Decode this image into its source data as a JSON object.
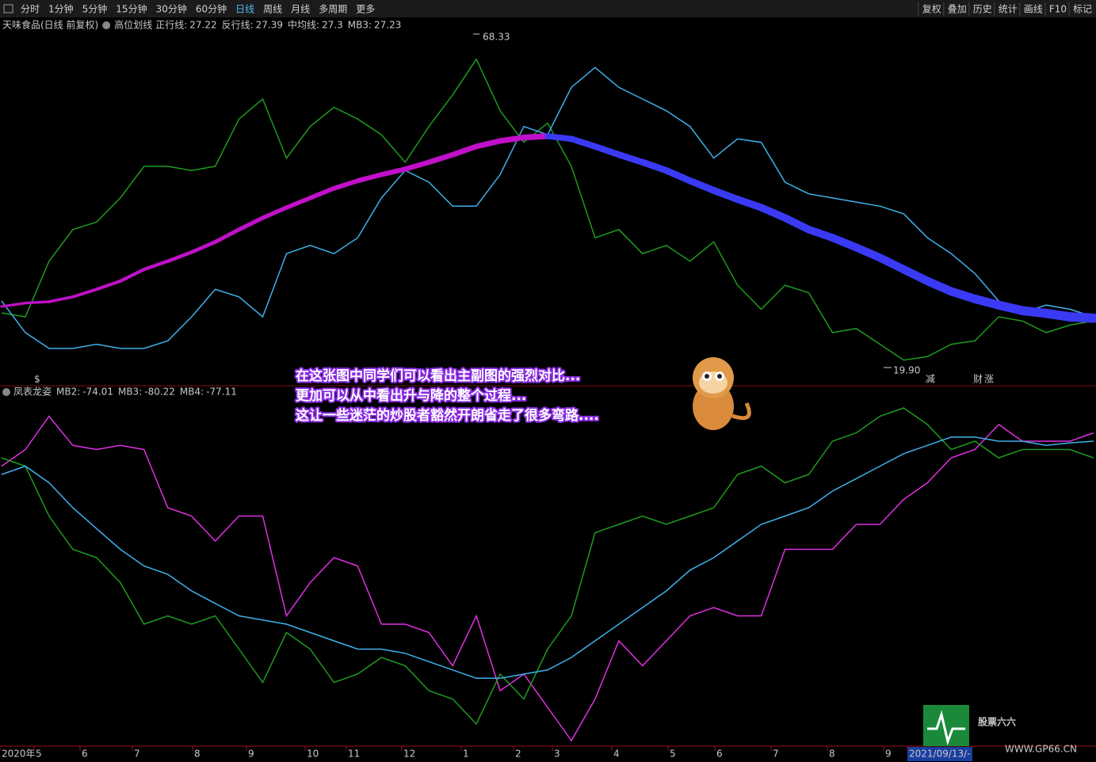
{
  "toolbar": {
    "periods": [
      "分时",
      "1分钟",
      "5分钟",
      "15分钟",
      "30分钟",
      "60分钟",
      "日线",
      "周线",
      "月线",
      "多周期",
      "更多"
    ],
    "tools": [
      "复权",
      "叠加",
      "历史",
      "统计",
      "画线",
      "F10",
      "标记"
    ]
  },
  "main": {
    "stock": "天味食品(日线 前复权)",
    "indicator": "高位划线",
    "legend": [
      {
        "name": "正行线:",
        "value": 27.22,
        "color": "#2ea02e"
      },
      {
        "name": "反行线:",
        "value": 27.39,
        "color": "#4fb8f0"
      },
      {
        "name": "中均线:",
        "value": 27.3,
        "color": "#e020e0"
      },
      {
        "name": "MB3:",
        "value": 27.23,
        "color": "#c8c8c8"
      }
    ],
    "high": 68.33,
    "low": {
      "value": 19.9,
      "label": "19.90"
    },
    "markers": [
      {
        "text": "$",
        "color": "#e02020"
      },
      {
        "text": "减",
        "color": "#20c020"
      },
      {
        "text": "财",
        "color": "#4fb8f0"
      },
      {
        "text": "涨",
        "color": "#e02020"
      }
    ],
    "series": [
      {
        "color": "#1f9a1f",
        "values": [
          27.97,
          27.4,
          35.5,
          40.1,
          41.2,
          44.7,
          49.3,
          49.3,
          48.7,
          49.3,
          56.2,
          59.1,
          50.5,
          55.1,
          57.9,
          56.2,
          53.9,
          49.9,
          55.1,
          59.7,
          64.9,
          57.4,
          52.8,
          55.6,
          49.3,
          38.9,
          40.1,
          36.6,
          37.8,
          35.5,
          38.3,
          32.0,
          28.5,
          32.0,
          30.9,
          25.1,
          25.7,
          23.4,
          21.1,
          21.6,
          23.4,
          23.9,
          27.4,
          26.8,
          25.1,
          26.2,
          26.8
        ]
      },
      {
        "color": "#3fb0ea",
        "values": [
          29.7,
          25.1,
          22.8,
          22.8,
          23.4,
          22.8,
          22.8,
          23.9,
          27.4,
          31.4,
          30.3,
          27.4,
          36.6,
          37.8,
          36.6,
          38.9,
          44.7,
          48.7,
          47.0,
          43.5,
          43.5,
          48.1,
          55.1,
          53.9,
          60.8,
          63.7,
          60.8,
          59.1,
          57.4,
          55.1,
          50.5,
          53.3,
          52.8,
          47.0,
          45.3,
          44.7,
          44.1,
          43.5,
          42.4,
          38.9,
          36.6,
          33.7,
          29.7,
          28.0,
          29.1,
          28.5,
          27.4
        ]
      },
      {
        "color": "#c010c8",
        "fall_color": "#3a3af5",
        "thick": true,
        "values": [
          28.9,
          29.4,
          29.6,
          30.3,
          31.4,
          32.6,
          34.3,
          35.5,
          36.8,
          38.3,
          40.1,
          41.8,
          43.3,
          44.7,
          46.1,
          47.2,
          48.1,
          48.9,
          49.9,
          51.0,
          52.2,
          53.0,
          53.5,
          53.7,
          53.3,
          52.2,
          51.0,
          49.9,
          48.7,
          47.2,
          45.8,
          44.5,
          43.3,
          41.8,
          40.1,
          38.9,
          37.5,
          36.0,
          34.3,
          32.6,
          31.1,
          30.0,
          29.1,
          28.3,
          27.9,
          27.4,
          27.2
        ]
      }
    ]
  },
  "sub": {
    "name": "凤表龙姿",
    "legend": [
      {
        "name": "MB2:",
        "value": -74.01,
        "color": "#e040e0"
      },
      {
        "name": "MB3:",
        "value": -80.22,
        "color": "#2ea02e"
      },
      {
        "name": "MB4:",
        "value": -77.11,
        "color": "#4fb8f0"
      }
    ],
    "series": [
      {
        "color": "#e030e0",
        "values": [
          355,
          375,
          415,
          380,
          375,
          380,
          375,
          305,
          295,
          265,
          295,
          295,
          175,
          215,
          245,
          235,
          165,
          165,
          155,
          115,
          175,
          85,
          105,
          65,
          25,
          75,
          145,
          115,
          145,
          175,
          185,
          175,
          175,
          255,
          255,
          255,
          285,
          285,
          315,
          335,
          365,
          375,
          405,
          385,
          385,
          385,
          395
        ]
      },
      {
        "color": "#1f9a1f",
        "values": [
          365,
          355,
          295,
          255,
          245,
          215,
          165,
          175,
          165,
          175,
          135,
          95,
          155,
          135,
          95,
          105,
          125,
          115,
          85,
          75,
          45,
          105,
          75,
          135,
          175,
          275,
          285,
          295,
          285,
          295,
          305,
          345,
          355,
          335,
          345,
          385,
          395,
          415,
          425,
          405,
          375,
          385,
          365,
          375,
          375,
          375,
          365
        ]
      },
      {
        "color": "#3fb0ea",
        "values": [
          345,
          355,
          335,
          305,
          280,
          255,
          235,
          225,
          205,
          190,
          175,
          170,
          165,
          155,
          145,
          135,
          135,
          130,
          120,
          110,
          100,
          100,
          105,
          110,
          125,
          145,
          165,
          185,
          205,
          230,
          245,
          265,
          285,
          295,
          305,
          325,
          340,
          355,
          370,
          380,
          390,
          390,
          385,
          385,
          380,
          383,
          385
        ]
      }
    ]
  },
  "annotation": [
    "在这张图中同学们可以看出主副图的强烈对比...",
    "更加可以从中看出升与降的整个过程...",
    "这让一些迷茫的炒股者豁然开朗省走了很多弯路...."
  ],
  "x_axis": [
    "2020年",
    "5",
    "6",
    "7",
    "8",
    "9",
    "10",
    "11",
    "12",
    "1",
    "2",
    "3",
    "4",
    "5",
    "6",
    "7",
    "8",
    "9",
    "2021/09/13/-"
  ],
  "watermark": {
    "brand": "股票六六",
    "url": "WWW.GP66.CN"
  }
}
